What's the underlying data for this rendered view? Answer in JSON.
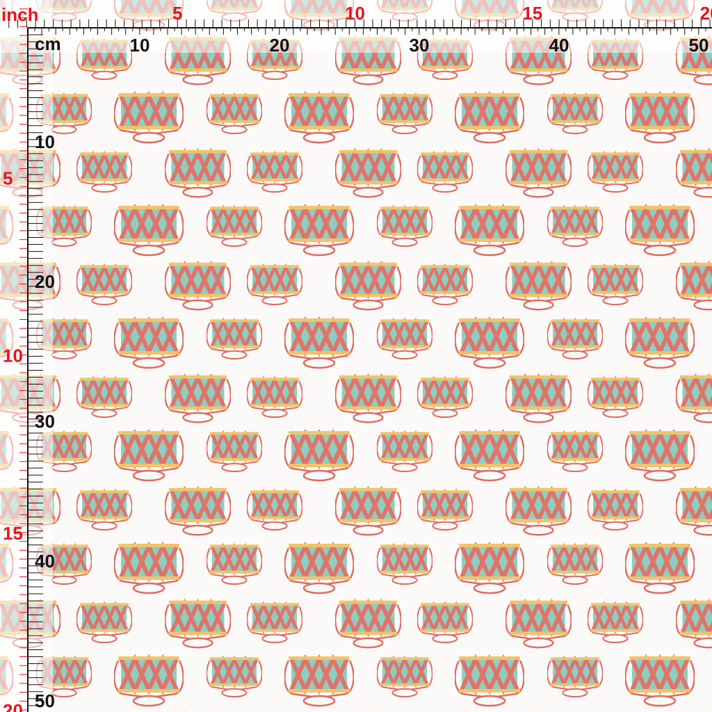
{
  "rulers": {
    "top": {
      "inch_unit": "inch",
      "inch_labels": [
        5,
        10,
        15,
        20
      ],
      "cm_unit": "cm",
      "cm_labels": [
        10,
        20,
        30,
        40,
        50
      ]
    },
    "left": {
      "cm_labels": [
        10,
        20,
        30,
        40,
        50
      ],
      "inch_labels": [
        5,
        10,
        15,
        20
      ]
    }
  }
}
